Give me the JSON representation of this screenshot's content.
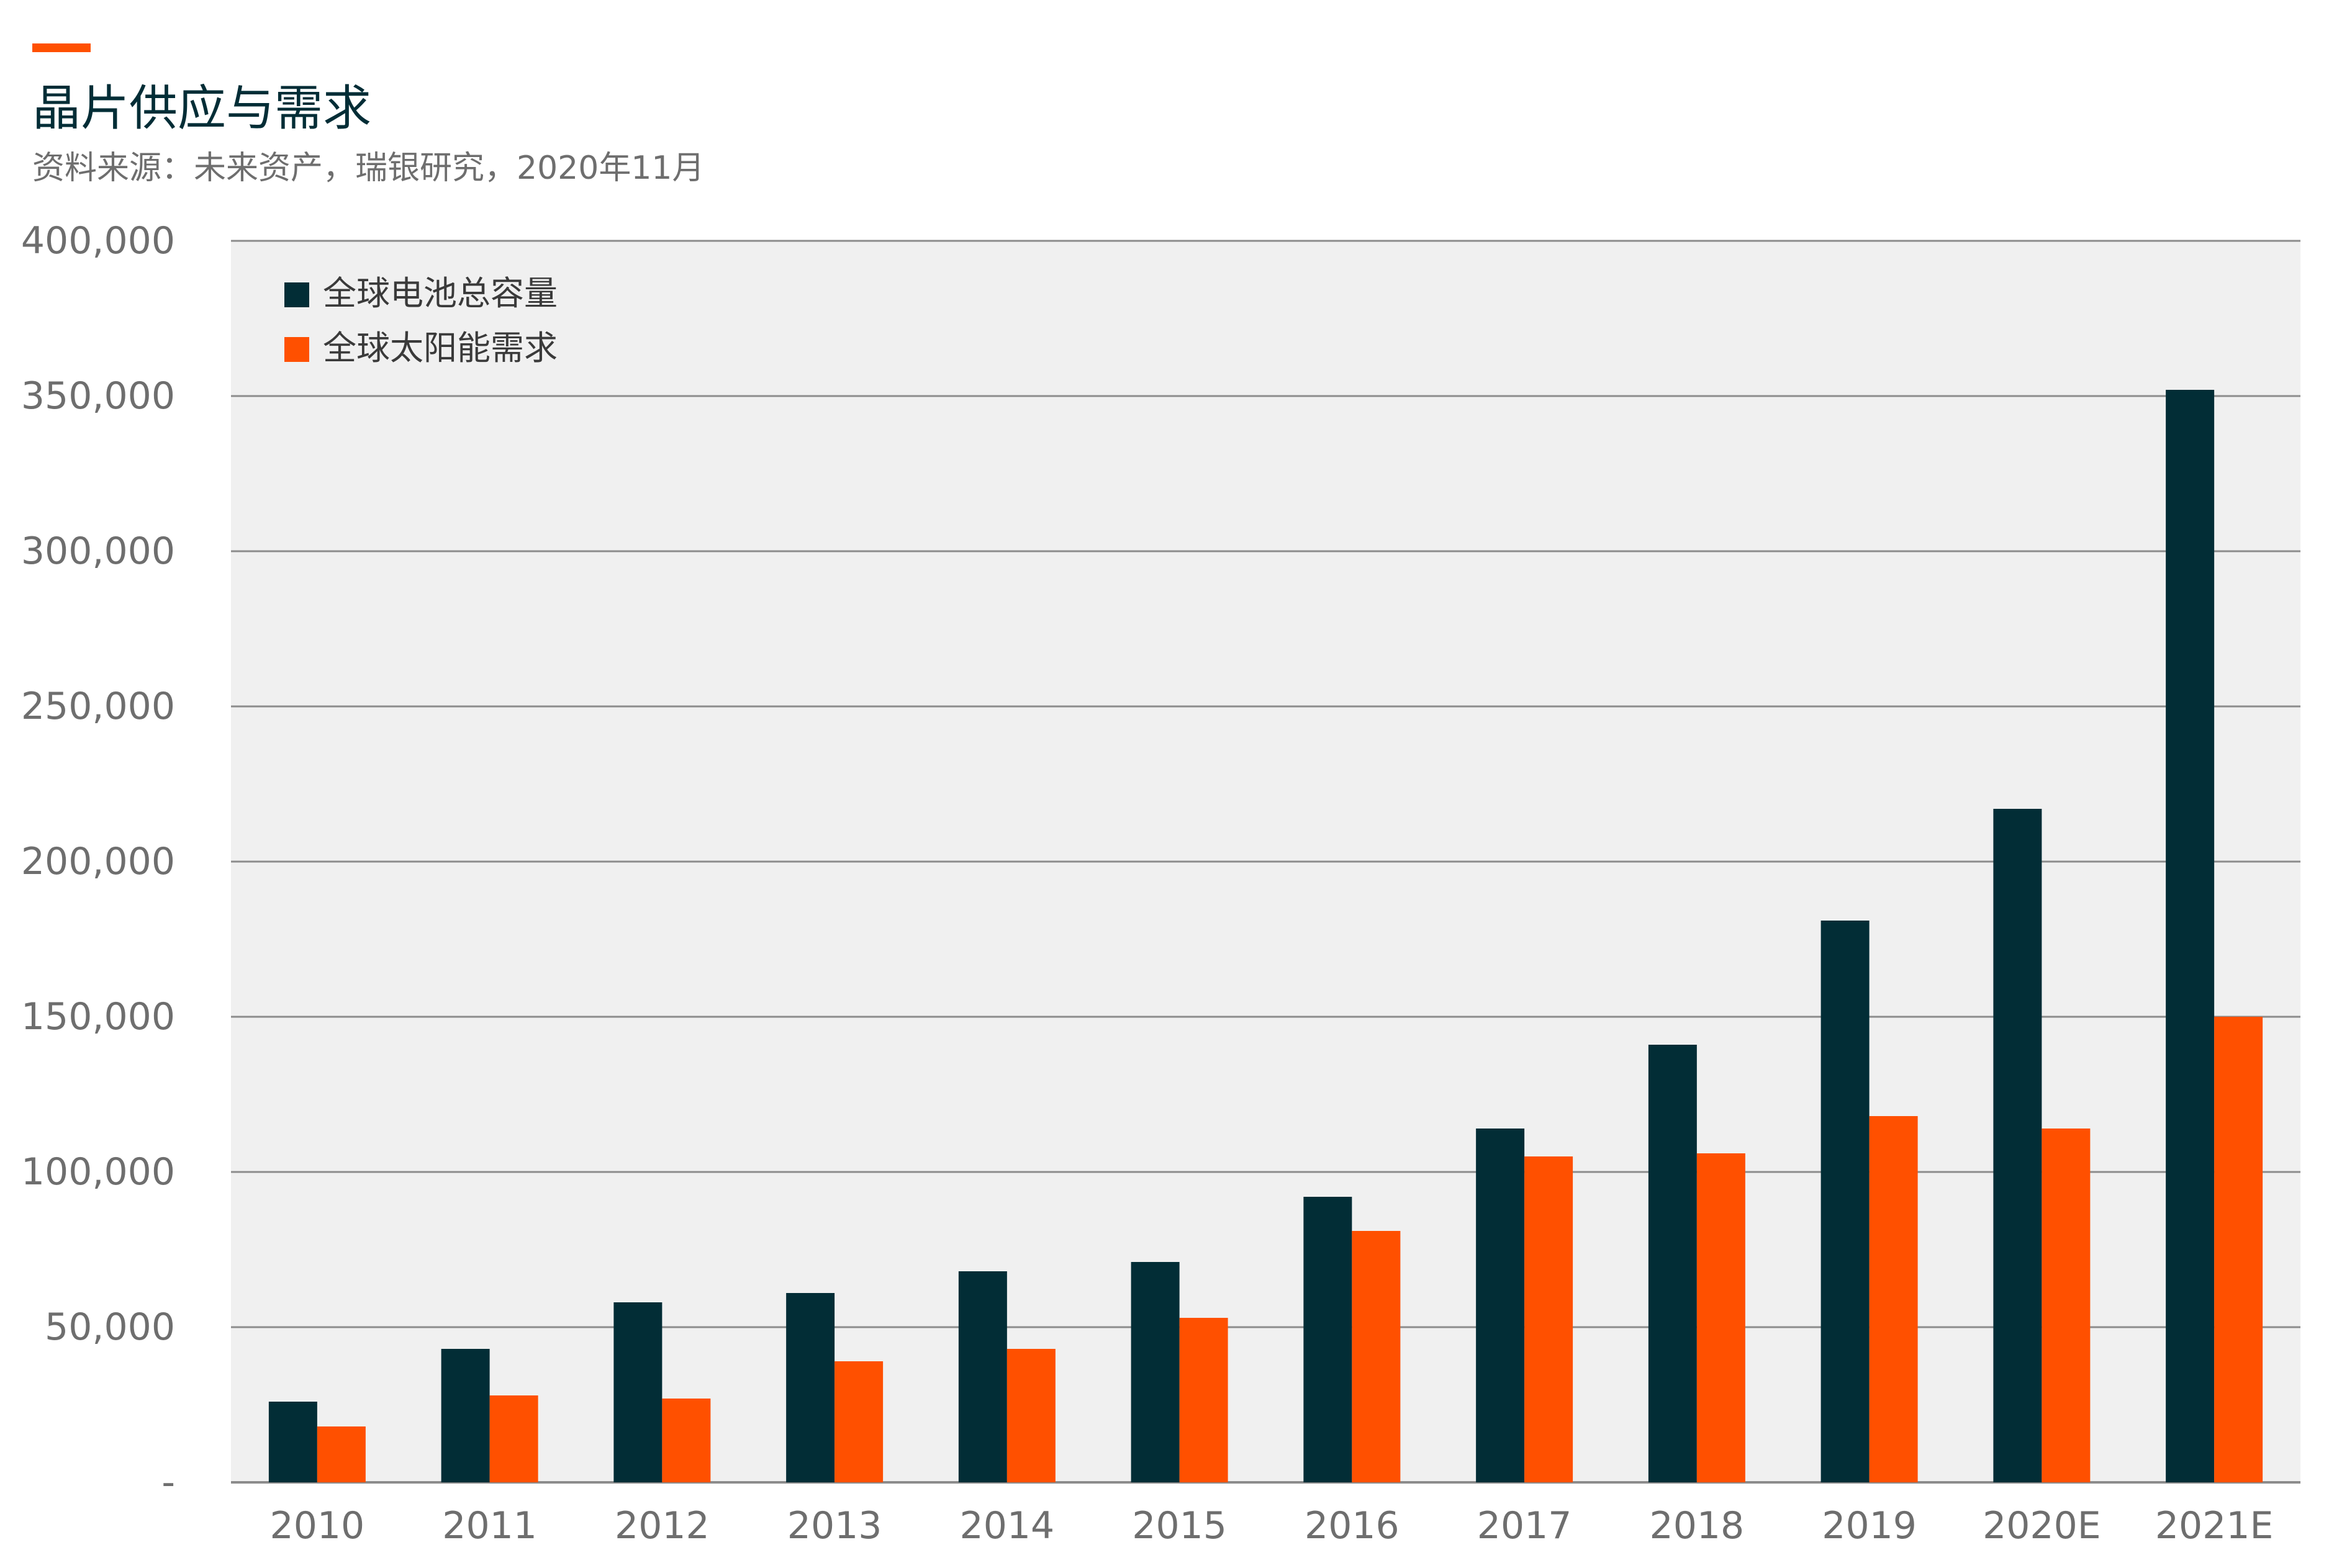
{
  "header": {
    "title": "晶片供应与需求",
    "source": "资料来源：未来资产，瑞银研究，2020年11月"
  },
  "colors": {
    "accent": "#FF5000",
    "battery": "#022D36",
    "solar": "#FF5000",
    "plot_bg": "#F0F0F0",
    "grid": "#8C8C8C",
    "tick_text": "#6E6E6E"
  },
  "chart_data": {
    "type": "bar",
    "categories": [
      "2010",
      "2011",
      "2012",
      "2013",
      "2014",
      "2015",
      "2016",
      "2017",
      "2018",
      "2019",
      "2020E",
      "2021E"
    ],
    "series": [
      {
        "name": "全球电池总容量",
        "values": [
          26000,
          43000,
          58000,
          61000,
          68000,
          71000,
          92000,
          114000,
          141000,
          181000,
          217000,
          352000
        ]
      },
      {
        "name": "全球太阳能需求",
        "values": [
          18000,
          28000,
          27000,
          39000,
          43000,
          53000,
          81000,
          105000,
          106000,
          118000,
          114000,
          150000
        ]
      }
    ],
    "ylim": [
      0,
      400000
    ],
    "yticks": [
      0,
      50000,
      100000,
      150000,
      200000,
      250000,
      300000,
      350000,
      400000
    ],
    "ytick_labels": [
      "-",
      "50,000",
      "100,000",
      "150,000",
      "200,000",
      "250,000",
      "300,000",
      "350,000",
      "400,000"
    ],
    "grid": true,
    "legend_position": "top-left"
  }
}
